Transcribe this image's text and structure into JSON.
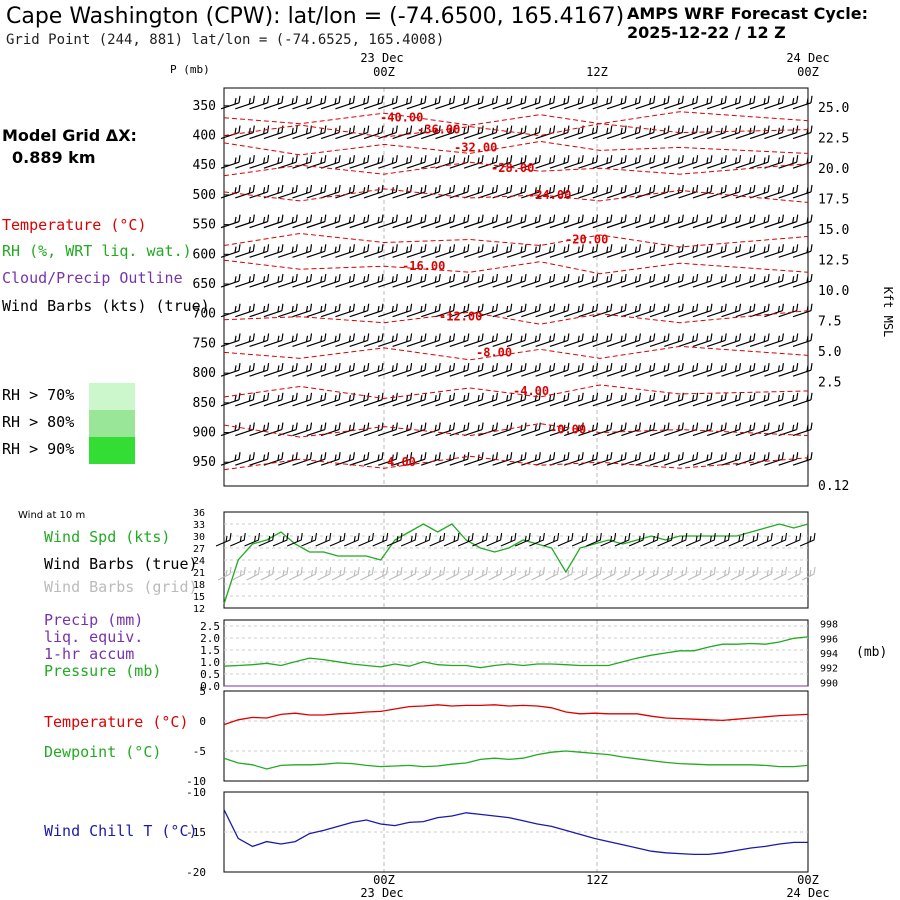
{
  "header": {
    "title": "Cape Washington (CPW):  lat/lon = (-74.6500, 165.4167)",
    "grid_point": "Grid Point (244, 881) lat/lon = (-74.6525, 165.4008)",
    "cycle_line1": "AMPS WRF Forecast Cycle:",
    "cycle_line2": "2025-12-22 / 12  Z",
    "model_grid_label": "Model Grid ΔX:",
    "model_grid_value": "0.889 km"
  },
  "colors": {
    "temperature": "#dd0000",
    "rh": "#22aa22",
    "cloud": "#7733aa",
    "wind_chill": "#1a1aaa",
    "rh70": "#ccf7cc",
    "rh80": "#99e699",
    "rh90": "#33dd33"
  },
  "left_legend": {
    "temperature": "Temperature (°C)",
    "rh": "RH (%, WRT liq. wat.)",
    "cloud": "Cloud/Precip Outline",
    "wind_barbs": "Wind Barbs (kts) (true)",
    "rh70": "RH > 70%",
    "rh80": "RH > 80%",
    "rh90": "RH > 90%",
    "wind_10m": "Wind at 10 m",
    "wind_spd": "Wind Spd (kts)",
    "wind_barbs_true": "Wind Barbs (true)",
    "wind_barbs_grid": "Wind Barbs (grid)",
    "precip1": "Precip (mm)",
    "precip2": "liq. equiv.",
    "precip3": "1-hr accum",
    "pressure": "Pressure (mb)",
    "temp2": "Temperature (°C)",
    "dewpoint": "Dewpoint (°C)",
    "windchill": "Wind Chill T (°C)"
  },
  "time_axis": {
    "top_dates": [
      "23 Dec",
      "24 Dec"
    ],
    "top_times": [
      "00Z",
      "12Z",
      "00Z"
    ],
    "bottom_times": [
      "00Z",
      "12Z",
      "00Z"
    ],
    "bottom_dates": [
      "23 Dec",
      "24 Dec"
    ]
  },
  "chart_data": [
    {
      "type": "heatmap",
      "title": "",
      "ylabel": "P (mb)",
      "y2label": "Kft MSL",
      "pressure_ticks": [
        "350",
        "400",
        "450",
        "500",
        "550",
        "600",
        "650",
        "700",
        "750",
        "800",
        "850",
        "900",
        "950"
      ],
      "height_ticks": [
        "25.0",
        "22.5",
        "20.0",
        "17.5",
        "15.0",
        "12.5",
        "10.0",
        "7.5",
        "5.0",
        "2.5",
        "0.12"
      ],
      "temperature_contours": [
        {
          "label": "-40.00",
          "level": 370
        },
        {
          "label": "-36.00",
          "level": 390
        },
        {
          "label": "-32.00",
          "level": 420
        },
        {
          "label": "-28.00",
          "level": 455
        },
        {
          "label": "-24.00",
          "level": 500
        },
        {
          "label": "-20.00",
          "level": 575
        },
        {
          "label": "-16.00",
          "level": 620
        },
        {
          "label": "-12.00",
          "level": 705
        },
        {
          "label": "-8.00",
          "level": 765
        },
        {
          "label": "-4.00",
          "level": 830
        },
        {
          "label": "-0.00",
          "level": 895
        },
        {
          "label": "4.00",
          "level": 950
        }
      ],
      "barb_rows": 13,
      "barb_columns": 41
    },
    {
      "type": "line",
      "title": "",
      "series": [
        {
          "name": "Wind Spd (kts)",
          "values": [
            13,
            24,
            28,
            29,
            31,
            28,
            26,
            26,
            25,
            25,
            25,
            24,
            29,
            31,
            33,
            31,
            33,
            29,
            27,
            26,
            27,
            29,
            28,
            27,
            21,
            27,
            28,
            29,
            28,
            29,
            30,
            29,
            30,
            30,
            30,
            30,
            30,
            31,
            32,
            33,
            32,
            33
          ]
        }
      ],
      "ylim": [
        12,
        36
      ],
      "yticks": [
        "12",
        "15",
        "18",
        "21",
        "24",
        "27",
        "30",
        "33",
        "36"
      ]
    },
    {
      "type": "line",
      "title": "",
      "yticks_left": [
        "0.0",
        "0.5",
        "1.0",
        "1.5",
        "2.0",
        "2.5"
      ],
      "yticks_right": [
        "990",
        "992",
        "994",
        "996",
        "998"
      ],
      "y2label": "(mb)",
      "ylim": [
        0,
        2.5
      ],
      "y2lim": [
        989.5,
        998.5
      ],
      "series": [
        {
          "name": "Precip (mm)",
          "values": [
            0,
            0,
            0,
            0,
            0,
            0,
            0,
            0,
            0,
            0,
            0,
            0,
            0,
            0,
            0,
            0,
            0,
            0,
            0,
            0,
            0,
            0,
            0,
            0,
            0,
            0,
            0,
            0,
            0,
            0,
            0,
            0,
            0,
            0,
            0,
            0,
            0,
            0,
            0,
            0,
            0,
            0
          ]
        },
        {
          "name": "Pressure (mb)",
          "values": [
            992.2,
            992.3,
            992.4,
            992.6,
            992.3,
            992.8,
            993.3,
            993.1,
            992.8,
            992.5,
            992.3,
            992.1,
            992.5,
            992.2,
            992.8,
            992.4,
            992.3,
            992.3,
            992.0,
            992.3,
            992.5,
            992.3,
            992.5,
            992.5,
            992.4,
            992.3,
            992.3,
            992.3,
            992.8,
            993.3,
            993.7,
            994.0,
            994.3,
            994.3,
            994.8,
            995.2,
            995.2,
            995.3,
            995.2,
            995.5,
            996.0,
            996.2
          ]
        }
      ]
    },
    {
      "type": "line",
      "title": "",
      "yticks": [
        "5",
        "0",
        "-5",
        "-10"
      ],
      "ylim": [
        -10,
        5
      ],
      "series": [
        {
          "name": "Temperature (°C)",
          "values": [
            -0.6,
            0.2,
            0.6,
            0.5,
            1.1,
            1.3,
            1.0,
            1.0,
            1.2,
            1.3,
            1.5,
            1.6,
            2.0,
            2.4,
            2.5,
            2.7,
            2.5,
            2.6,
            2.6,
            2.7,
            2.5,
            2.6,
            2.5,
            2.2,
            1.5,
            1.2,
            1.3,
            1.2,
            1.2,
            1.2,
            0.8,
            0.5,
            0.4,
            0.3,
            0.2,
            0.1,
            0.3,
            0.5,
            0.7,
            0.9,
            1.0,
            1.1
          ]
        },
        {
          "name": "Dewpoint (°C)",
          "values": [
            -6.2,
            -7.0,
            -7.3,
            -8.0,
            -7.4,
            -7.3,
            -7.3,
            -7.2,
            -7.0,
            -7.1,
            -7.4,
            -7.6,
            -7.5,
            -7.4,
            -7.6,
            -7.5,
            -7.2,
            -7.0,
            -6.4,
            -6.2,
            -6.4,
            -6.2,
            -5.6,
            -5.2,
            -5.0,
            -5.2,
            -5.4,
            -5.6,
            -6.0,
            -6.3,
            -6.6,
            -6.9,
            -7.1,
            -7.2,
            -7.3,
            -7.3,
            -7.3,
            -7.3,
            -7.4,
            -7.6,
            -7.6,
            -7.4
          ]
        }
      ]
    },
    {
      "type": "line",
      "title": "",
      "yticks": [
        "-10",
        "-15",
        "-20"
      ],
      "ylim": [
        -20,
        -10
      ],
      "series": [
        {
          "name": "Wind Chill T (°C)",
          "values": [
            -12.2,
            -15.8,
            -16.8,
            -16.2,
            -16.5,
            -16.2,
            -15.2,
            -14.8,
            -14.3,
            -13.8,
            -13.5,
            -14.0,
            -14.2,
            -13.8,
            -13.7,
            -13.2,
            -13.0,
            -12.6,
            -12.8,
            -13.0,
            -13.2,
            -13.6,
            -14.0,
            -14.3,
            -14.8,
            -15.3,
            -15.8,
            -16.2,
            -16.6,
            -17.0,
            -17.4,
            -17.6,
            -17.7,
            -17.8,
            -17.8,
            -17.6,
            -17.3,
            -17.0,
            -16.8,
            -16.5,
            -16.3,
            -16.3
          ]
        }
      ]
    }
  ]
}
